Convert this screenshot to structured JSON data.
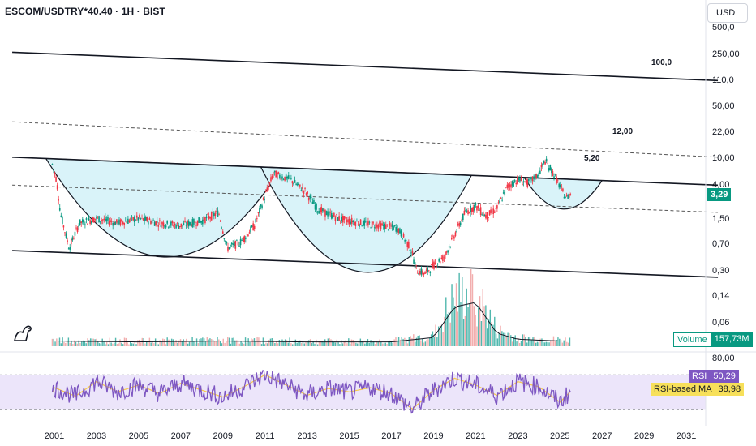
{
  "header": {
    "symbol_title": "ESCOM/USDTRY*40.40 · 1H · BIST",
    "currency_button": "USD"
  },
  "price_axis": {
    "labels": [
      "250,00",
      "110,0",
      "50,00",
      "22,00",
      "10,00",
      "4,00",
      "1,50",
      "0,70",
      "0,30",
      "0,14",
      "0,06"
    ],
    "top_partial": "500,0",
    "current_price": "3,29"
  },
  "rsi_axis": {
    "label": "80,00"
  },
  "time_axis": {
    "labels": [
      "2001",
      "2003",
      "2005",
      "2007",
      "2009",
      "2011",
      "2013",
      "2015",
      "2017",
      "2019",
      "2021",
      "2023",
      "2025",
      "2027",
      "2029",
      "2031"
    ]
  },
  "annotations": {
    "level_1": "100,0",
    "level_2": "12,00",
    "level_3": "5,20"
  },
  "volume": {
    "label": "Volume",
    "value": "157,73M"
  },
  "rsi": {
    "label": "RSI",
    "value": "50,29",
    "ma_label": "RSI-based MA",
    "ma_value": "38,98"
  },
  "colors": {
    "up": "#089981",
    "down": "#f23645",
    "cup_fill": "#d9f3f9",
    "rsi_band": "#ece5fa",
    "rsi_line": "#7e57c2",
    "rsi_ma": "#f7c948",
    "price_tag": "#089981",
    "volume_tag": "#089981"
  },
  "chart_data": {
    "type": "candlestick",
    "price_scale": "log",
    "price_series": [
      {
        "year": 2000.9,
        "price": 8.0
      },
      {
        "year": 2001.1,
        "price": 5.0
      },
      {
        "year": 2001.3,
        "price": 1.7
      },
      {
        "year": 2001.7,
        "price": 0.6
      },
      {
        "year": 2002.2,
        "price": 1.3
      },
      {
        "year": 2003.0,
        "price": 1.5
      },
      {
        "year": 2004.0,
        "price": 1.3
      },
      {
        "year": 2005.0,
        "price": 1.5
      },
      {
        "year": 2006.0,
        "price": 1.3
      },
      {
        "year": 2007.0,
        "price": 1.2
      },
      {
        "year": 2008.0,
        "price": 1.4
      },
      {
        "year": 2008.8,
        "price": 1.8
      },
      {
        "year": 2009.2,
        "price": 0.6
      },
      {
        "year": 2009.8,
        "price": 0.7
      },
      {
        "year": 2010.5,
        "price": 1.2
      },
      {
        "year": 2011.0,
        "price": 3.0
      },
      {
        "year": 2011.4,
        "price": 6.0
      },
      {
        "year": 2012.2,
        "price": 5.0
      },
      {
        "year": 2012.9,
        "price": 3.5
      },
      {
        "year": 2013.5,
        "price": 2.0
      },
      {
        "year": 2014.5,
        "price": 1.5
      },
      {
        "year": 2015.5,
        "price": 1.3
      },
      {
        "year": 2016.5,
        "price": 1.2
      },
      {
        "year": 2017.3,
        "price": 1.1
      },
      {
        "year": 2017.9,
        "price": 0.6
      },
      {
        "year": 2018.2,
        "price": 0.3
      },
      {
        "year": 2018.6,
        "price": 0.27
      },
      {
        "year": 2019.0,
        "price": 0.35
      },
      {
        "year": 2019.5,
        "price": 0.45
      },
      {
        "year": 2020.0,
        "price": 0.9
      },
      {
        "year": 2020.5,
        "price": 1.8
      },
      {
        "year": 2021.0,
        "price": 2.2
      },
      {
        "year": 2021.5,
        "price": 1.6
      },
      {
        "year": 2022.0,
        "price": 2.0
      },
      {
        "year": 2022.5,
        "price": 4.0
      },
      {
        "year": 2023.0,
        "price": 5.0
      },
      {
        "year": 2023.5,
        "price": 4.5
      },
      {
        "year": 2024.0,
        "price": 6.0
      },
      {
        "year": 2024.3,
        "price": 9.0
      },
      {
        "year": 2024.7,
        "price": 6.0
      },
      {
        "year": 2025.0,
        "price": 4.0
      },
      {
        "year": 2025.3,
        "price": 2.8
      },
      {
        "year": 2025.5,
        "price": 3.29
      }
    ],
    "volume_series": [
      {
        "year": 2001,
        "volume": 0.6
      },
      {
        "year": 2005,
        "volume": 0.5
      },
      {
        "year": 2009,
        "volume": 0.6
      },
      {
        "year": 2013,
        "volume": 0.5
      },
      {
        "year": 2017,
        "volume": 0.5
      },
      {
        "year": 2019,
        "volume": 1.0
      },
      {
        "year": 2020,
        "volume": 4.5
      },
      {
        "year": 2021,
        "volume": 5.0
      },
      {
        "year": 2022,
        "volume": 1.5
      },
      {
        "year": 2023,
        "volume": 0.8
      },
      {
        "year": 2025,
        "volume": 0.6
      }
    ],
    "rsi_series": [
      {
        "year": 2001,
        "rsi": 55
      },
      {
        "year": 2002,
        "rsi": 45
      },
      {
        "year": 2003,
        "rsi": 62
      },
      {
        "year": 2004,
        "rsi": 50
      },
      {
        "year": 2005,
        "rsi": 58
      },
      {
        "year": 2006,
        "rsi": 48
      },
      {
        "year": 2007,
        "rsi": 60
      },
      {
        "year": 2008,
        "rsi": 52
      },
      {
        "year": 2009,
        "rsi": 44
      },
      {
        "year": 2010,
        "rsi": 56
      },
      {
        "year": 2011,
        "rsi": 70
      },
      {
        "year": 2012,
        "rsi": 58
      },
      {
        "year": 2013,
        "rsi": 46
      },
      {
        "year": 2014,
        "rsi": 54
      },
      {
        "year": 2015,
        "rsi": 50
      },
      {
        "year": 2016,
        "rsi": 55
      },
      {
        "year": 2017,
        "rsi": 48
      },
      {
        "year": 2018,
        "rsi": 30
      },
      {
        "year": 2019,
        "rsi": 52
      },
      {
        "year": 2020,
        "rsi": 66
      },
      {
        "year": 2021,
        "rsi": 58
      },
      {
        "year": 2022,
        "rsi": 46
      },
      {
        "year": 2023,
        "rsi": 62
      },
      {
        "year": 2024,
        "rsi": 56
      },
      {
        "year": 2025,
        "rsi": 38
      },
      {
        "year": 2025.5,
        "rsi": 50.29
      }
    ],
    "trendlines": [
      {
        "name": "upper-channel",
        "from": {
          "year": 1999.0,
          "price": 260
        },
        "to": {
          "year": 2032.5,
          "price": 108
        }
      },
      {
        "name": "upper-dashed",
        "from": {
          "year": 1999.0,
          "price": 30
        },
        "to": {
          "year": 2032.5,
          "price": 10
        }
      },
      {
        "name": "neckline",
        "from": {
          "year": 1999.0,
          "price": 10
        },
        "to": {
          "year": 2032.5,
          "price": 4.2
        }
      },
      {
        "name": "mid-dashed",
        "from": {
          "year": 1999.0,
          "price": 4.2
        },
        "to": {
          "year": 2032.5,
          "price": 1.8
        }
      },
      {
        "name": "lower-channel",
        "from": {
          "year": 1999.0,
          "price": 0.55
        },
        "to": {
          "year": 2032.5,
          "price": 0.24
        }
      }
    ],
    "cups": [
      {
        "start_year": 2000.6,
        "end_year": 2011.8,
        "bottom_price": 0.45
      },
      {
        "start_year": 2010.8,
        "end_year": 2020.8,
        "bottom_price": 0.28
      },
      {
        "start_year": 2023.3,
        "end_year": 2027.0,
        "bottom_price": 2.0
      }
    ],
    "price_range": [
      0.04,
      600
    ],
    "rsi_range": [
      20,
      90
    ],
    "rsi_band": [
      30,
      70
    ],
    "grid": false
  }
}
